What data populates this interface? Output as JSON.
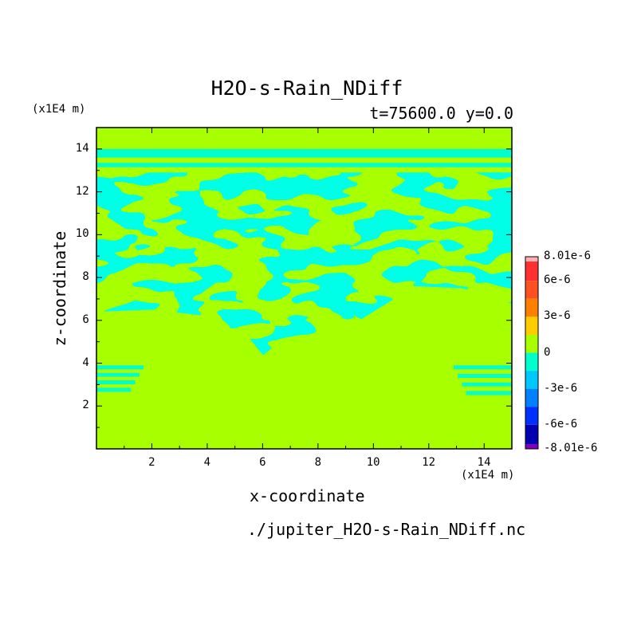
{
  "chart_data": {
    "type": "heatmap",
    "title": "H2O-s-Rain_NDiff",
    "subtitle": "t=75600.0 y=0.0",
    "xlabel": "x-coordinate",
    "ylabel": "z-coordinate",
    "x_unit": "(x1E4 m)",
    "y_unit": "(x1E4 m)",
    "source_file": "./jupiter_H2O-s-Rain_NDiff.nc",
    "xlim": [
      0,
      15
    ],
    "ylim": [
      0,
      15
    ],
    "x_ticks": [
      2,
      4,
      6,
      8,
      10,
      12,
      14
    ],
    "x_tick_labels": [
      "2",
      "4",
      "6",
      "8",
      "10",
      "12",
      "14"
    ],
    "y_ticks": [
      2,
      4,
      6,
      8,
      10,
      12,
      14
    ],
    "y_tick_labels": [
      "2",
      "4",
      "6",
      "8",
      "10",
      "12",
      "14"
    ],
    "colorbar": {
      "min": -8.01e-06,
      "max": 8.01e-06,
      "tick_values": [
        8.01e-06,
        6e-06,
        3e-06,
        0,
        -3e-06,
        -6e-06,
        -8.01e-06
      ],
      "tick_labels": [
        "8.01e-6",
        "6e-6",
        "3e-6",
        "0",
        "-3e-6",
        "-6e-6",
        "-8.01e-6"
      ],
      "levels": [
        {
          "range": [
            6e-06,
            8.01e-06
          ],
          "color": "#ff3030"
        },
        {
          "range": [
            4.5e-06,
            6e-06
          ],
          "color": "#ff5020"
        },
        {
          "range": [
            3e-06,
            4.5e-06
          ],
          "color": "#ff8000"
        },
        {
          "range": [
            1.5e-06,
            3e-06
          ],
          "color": "#ffcc00"
        },
        {
          "range": [
            0,
            1.5e-06
          ],
          "color": "#a8ff00"
        },
        {
          "range": [
            -1.5e-06,
            0
          ],
          "color": "#00ffcc"
        },
        {
          "range": [
            -3e-06,
            -1.5e-06
          ],
          "color": "#00c8ff"
        },
        {
          "range": [
            -4.5e-06,
            -3e-06
          ],
          "color": "#0080ff"
        },
        {
          "range": [
            -6e-06,
            -4.5e-06
          ],
          "color": "#0030ff"
        },
        {
          "range": [
            -8.01e-06,
            -6e-06
          ],
          "color": "#0000b0"
        }
      ],
      "top_cap_color": "#ffb0b0",
      "bottom_cap_color": "#8000c0"
    },
    "field_description_colors": {
      "background": "#a8ff00",
      "negative_band": "#00ffcc"
    },
    "bands": [
      {
        "y0": 13.6,
        "y1": 14.0,
        "x0": 0,
        "x1": 15
      },
      {
        "y0": 13.15,
        "y1": 13.35,
        "x0": 0,
        "x1": 15
      }
    ],
    "features": {
      "turbulent_region": {
        "y_top": 12.9,
        "y_bottom_edges": 6.4,
        "y_bottom_center": 4.4
      },
      "left_patch": {
        "x_range": [
          0,
          1.7
        ],
        "y_range": [
          2.5,
          3.9
        ]
      },
      "right_patch": {
        "x_range": [
          12.9,
          15
        ],
        "y_range": [
          2.3,
          3.9
        ]
      }
    }
  }
}
